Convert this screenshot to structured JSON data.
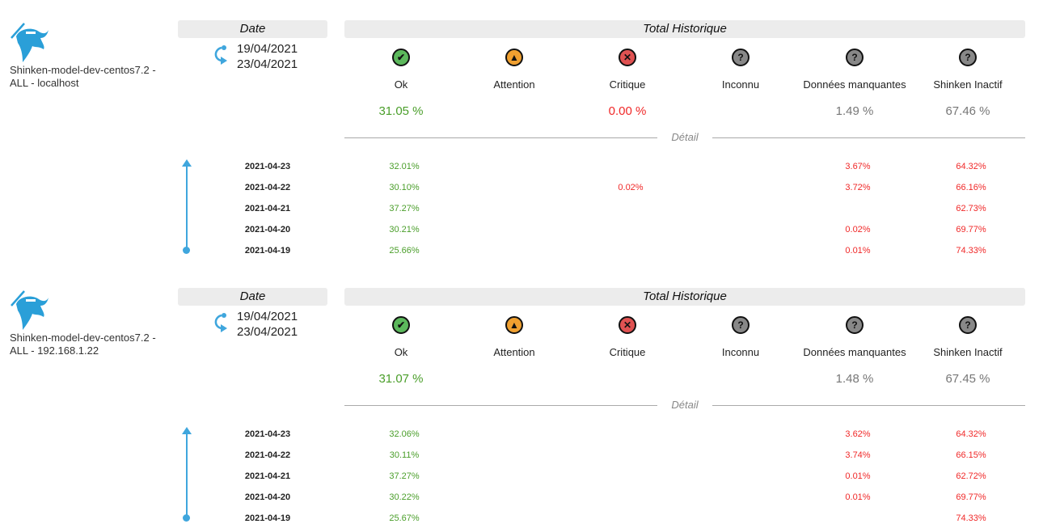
{
  "colors": {
    "ok": "#4a9e2a",
    "critical": "#f02828",
    "neutral": "#777777",
    "accent": "#3fa6dd"
  },
  "date_header": "Date",
  "total_header": "Total Historique",
  "detail_label": "Détail",
  "columns": [
    {
      "label": "Ok",
      "icon": "ok-check-icon"
    },
    {
      "label": "Attention",
      "icon": "warning-icon"
    },
    {
      "label": "Critique",
      "icon": "critical-x-icon"
    },
    {
      "label": "Inconnu",
      "icon": "unknown-question-icon"
    },
    {
      "label": "Données manquantes",
      "icon": "missing-data-question-icon"
    },
    {
      "label": "Shinken Inactif",
      "icon": "inactive-question-icon"
    }
  ],
  "reports": [
    {
      "host": "Shinken-model-dev-centos7.2 - ALL - localhost",
      "date_from": "19/04/2021",
      "date_to": "23/04/2021",
      "totals": [
        "31.05 %",
        "",
        "0.00 %",
        "",
        "1.49 %",
        "67.46 %"
      ],
      "rows": [
        {
          "date": "2021-04-23",
          "values": [
            "32.01%",
            "",
            "",
            "",
            "3.67%",
            "64.32%"
          ]
        },
        {
          "date": "2021-04-22",
          "values": [
            "30.10%",
            "",
            "0.02%",
            "",
            "3.72%",
            "66.16%"
          ]
        },
        {
          "date": "2021-04-21",
          "values": [
            "37.27%",
            "",
            "",
            "",
            "",
            "62.73%"
          ]
        },
        {
          "date": "2021-04-20",
          "values": [
            "30.21%",
            "",
            "",
            "",
            "0.02%",
            "69.77%"
          ]
        },
        {
          "date": "2021-04-19",
          "values": [
            "25.66%",
            "",
            "",
            "",
            "0.01%",
            "74.33%"
          ]
        }
      ]
    },
    {
      "host": "Shinken-model-dev-centos7.2 - ALL - 192.168.1.22",
      "date_from": "19/04/2021",
      "date_to": "23/04/2021",
      "totals": [
        "31.07 %",
        "",
        "",
        "",
        "1.48 %",
        "67.45 %"
      ],
      "rows": [
        {
          "date": "2021-04-23",
          "values": [
            "32.06%",
            "",
            "",
            "",
            "3.62%",
            "64.32%"
          ]
        },
        {
          "date": "2021-04-22",
          "values": [
            "30.11%",
            "",
            "",
            "",
            "3.74%",
            "66.15%"
          ]
        },
        {
          "date": "2021-04-21",
          "values": [
            "37.27%",
            "",
            "",
            "",
            "0.01%",
            "62.72%"
          ]
        },
        {
          "date": "2021-04-20",
          "values": [
            "30.22%",
            "",
            "",
            "",
            "0.01%",
            "69.77%"
          ]
        },
        {
          "date": "2021-04-19",
          "values": [
            "25.67%",
            "",
            "",
            "",
            "",
            "74.33%"
          ]
        }
      ]
    }
  ]
}
